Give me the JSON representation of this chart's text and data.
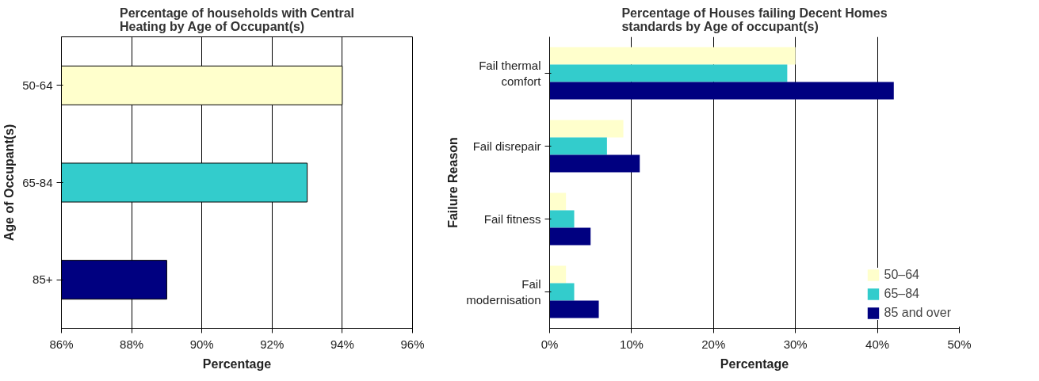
{
  "chart_data": [
    {
      "type": "bar",
      "orientation": "horizontal",
      "title": "Percentage of households with Central Heating by Age of Occupant(s)",
      "xlabel": "Percentage",
      "ylabel": "Age of Occupant(s)",
      "categories": [
        "50-64",
        "65-84",
        "85+"
      ],
      "values": [
        94,
        93,
        89
      ],
      "colors": [
        "#ffffcc",
        "#33cccc",
        "#000080"
      ],
      "xlim": [
        86,
        96
      ],
      "xticks": [
        {
          "value": 86,
          "label": "86%"
        },
        {
          "value": 88,
          "label": "88%"
        },
        {
          "value": 90,
          "label": "90%"
        },
        {
          "value": 92,
          "label": "92%"
        },
        {
          "value": 94,
          "label": "94%"
        },
        {
          "value": 96,
          "label": "96%"
        }
      ],
      "grid": "x"
    },
    {
      "type": "bar",
      "orientation": "horizontal",
      "title": "Percentage of Houses failing Decent Homes standards by Age of occupant(s)",
      "xlabel": "Percentage",
      "ylabel": "Failure Reason",
      "categories": [
        "Fail thermal comfort",
        "Fail disrepair",
        "Fail fitness",
        "Fail modernisation"
      ],
      "series": [
        {
          "name": "50–64",
          "color": "#ffffcc",
          "values": [
            30,
            9,
            2,
            2
          ]
        },
        {
          "name": "65–84",
          "color": "#33cccc",
          "values": [
            29,
            7,
            3,
            3
          ]
        },
        {
          "name": "85 and over",
          "color": "#000080",
          "values": [
            42,
            11,
            5,
            6
          ]
        }
      ],
      "xlim": [
        0,
        50
      ],
      "xticks": [
        {
          "value": 0,
          "label": "0%"
        },
        {
          "value": 10,
          "label": "10%"
        },
        {
          "value": 20,
          "label": "20%"
        },
        {
          "value": 30,
          "label": "30%"
        },
        {
          "value": 40,
          "label": "40%"
        },
        {
          "value": 50,
          "label": "50%"
        }
      ],
      "grid": "x",
      "legend": "bottom right"
    }
  ]
}
